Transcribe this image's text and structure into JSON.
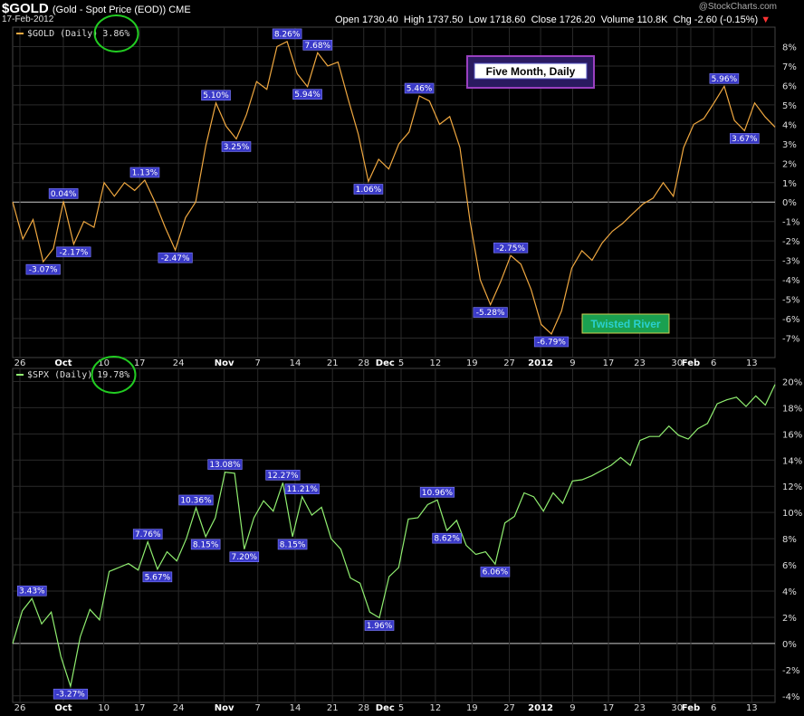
{
  "header": {
    "symbol": "$GOLD",
    "description": "(Gold - Spot Price (EOD)) CME",
    "date": "17-Feb-2012",
    "watermark": "@StockCharts.com",
    "open_label": "Open",
    "open": "1730.40",
    "high_label": "High",
    "high": "1737.50",
    "low_label": "Low",
    "low": "1718.60",
    "close_label": "Close",
    "close": "1726.20",
    "volume_label": "Volume",
    "volume": "110.8K",
    "chg_label": "Chg",
    "chg": "-2.60 (-0.15%)",
    "chg_icon": "down-triangle-icon"
  },
  "annotations": {
    "title_box": "Five Month, Daily",
    "credit_box": "Twisted River"
  },
  "colors": {
    "gold_line": "#f0a840",
    "spx_line": "#90ee70",
    "label_bg": "#3a3ac8",
    "label_border": "#8080ff",
    "circle": "#22cc22",
    "grid": "#2a2a2a",
    "zero": "#cccccc"
  },
  "chart_data": [
    {
      "type": "line",
      "legend": "$GOLD (Daily)",
      "last_value": "3.86%",
      "ylim": [
        -8,
        9
      ],
      "yticks": [
        "8%",
        "7%",
        "6%",
        "5%",
        "4%",
        "3%",
        "2%",
        "1%",
        "0%",
        "-1%",
        "-2%",
        "-3%",
        "-4%",
        "-5%",
        "-6%",
        "-7%"
      ],
      "y": [
        0.0,
        -1.9,
        -0.9,
        -3.07,
        -2.4,
        0.04,
        -2.17,
        -1.0,
        -1.3,
        1.0,
        0.3,
        1.0,
        0.6,
        1.13,
        0.0,
        -1.3,
        -2.47,
        -0.8,
        0.0,
        2.9,
        5.1,
        3.9,
        3.25,
        4.5,
        6.2,
        5.8,
        8.0,
        8.26,
        6.6,
        5.94,
        7.68,
        7.0,
        7.2,
        5.3,
        3.5,
        1.06,
        2.2,
        1.7,
        3.0,
        3.6,
        5.46,
        5.2,
        4.0,
        4.4,
        2.8,
        -1.0,
        -4.0,
        -5.28,
        -4.1,
        -2.75,
        -3.2,
        -4.5,
        -6.3,
        -6.79,
        -5.6,
        -3.4,
        -2.5,
        -3.0,
        -2.1,
        -1.5,
        -1.1,
        -0.6,
        -0.1,
        0.2,
        1.0,
        0.3,
        2.8,
        4.0,
        4.3,
        5.1,
        5.96,
        4.2,
        3.67,
        5.1,
        4.4,
        3.86
      ],
      "point_labels": [
        {
          "i": 3,
          "text": "-3.07%",
          "pos": "below"
        },
        {
          "i": 5,
          "text": "0.04%",
          "pos": "above"
        },
        {
          "i": 6,
          "text": "-2.17%",
          "pos": "below"
        },
        {
          "i": 13,
          "text": "1.13%",
          "pos": "above"
        },
        {
          "i": 16,
          "text": "-2.47%",
          "pos": "below"
        },
        {
          "i": 20,
          "text": "5.10%",
          "pos": "above"
        },
        {
          "i": 22,
          "text": "3.25%",
          "pos": "below"
        },
        {
          "i": 27,
          "text": "8.26%",
          "pos": "above"
        },
        {
          "i": 29,
          "text": "5.94%",
          "pos": "below"
        },
        {
          "i": 30,
          "text": "7.68%",
          "pos": "above"
        },
        {
          "i": 35,
          "text": "1.06%",
          "pos": "below"
        },
        {
          "i": 40,
          "text": "5.46%",
          "pos": "above"
        },
        {
          "i": 47,
          "text": "-5.28%",
          "pos": "below"
        },
        {
          "i": 49,
          "text": "-2.75%",
          "pos": "above"
        },
        {
          "i": 53,
          "text": "-6.79%",
          "pos": "below"
        },
        {
          "i": 70,
          "text": "5.96%",
          "pos": "above"
        },
        {
          "i": 72,
          "text": "3.67%",
          "pos": "below"
        }
      ]
    },
    {
      "type": "line",
      "legend": "$SPX (Daily)",
      "last_value": "19.78%",
      "ylim": [
        -4.5,
        21
      ],
      "yticks": [
        "20%",
        "18%",
        "16%",
        "14%",
        "12%",
        "10%",
        "8%",
        "6%",
        "4%",
        "2%",
        "0%",
        "-2%",
        "-4%"
      ],
      "y": [
        0.0,
        2.5,
        3.43,
        1.5,
        2.4,
        -1.0,
        -3.27,
        0.5,
        2.6,
        1.8,
        5.5,
        5.8,
        6.1,
        5.6,
        7.76,
        5.67,
        7.0,
        6.3,
        8.0,
        10.36,
        8.15,
        9.6,
        13.08,
        13.0,
        7.2,
        9.6,
        10.9,
        10.1,
        12.27,
        8.15,
        11.21,
        9.8,
        10.4,
        8.0,
        7.2,
        5.0,
        4.6,
        2.4,
        1.96,
        5.1,
        5.8,
        9.5,
        9.6,
        10.6,
        10.96,
        8.62,
        9.4,
        7.5,
        6.8,
        7.0,
        6.06,
        9.2,
        9.7,
        11.5,
        11.2,
        10.1,
        11.5,
        10.7,
        12.4,
        12.5,
        12.8,
        13.2,
        13.6,
        14.2,
        13.6,
        15.5,
        15.8,
        15.8,
        16.6,
        15.9,
        15.6,
        16.4,
        16.8,
        18.3,
        18.6,
        18.8,
        18.1,
        18.9,
        18.2,
        19.78
      ],
      "point_labels": [
        {
          "i": 2,
          "text": "3.43%",
          "pos": "above"
        },
        {
          "i": 6,
          "text": "-3.27%",
          "pos": "below"
        },
        {
          "i": 14,
          "text": "7.76%",
          "pos": "above"
        },
        {
          "i": 15,
          "text": "5.67%",
          "pos": "below"
        },
        {
          "i": 19,
          "text": "10.36%",
          "pos": "above"
        },
        {
          "i": 20,
          "text": "8.15%",
          "pos": "below"
        },
        {
          "i": 22,
          "text": "13.08%",
          "pos": "above"
        },
        {
          "i": 24,
          "text": "7.20%",
          "pos": "below"
        },
        {
          "i": 28,
          "text": "12.27%",
          "pos": "above"
        },
        {
          "i": 29,
          "text": "8.15%",
          "pos": "below"
        },
        {
          "i": 30,
          "text": "11.21%",
          "pos": "above"
        },
        {
          "i": 38,
          "text": "1.96%",
          "pos": "below"
        },
        {
          "i": 44,
          "text": "10.96%",
          "pos": "above"
        },
        {
          "i": 45,
          "text": "8.62%",
          "pos": "below"
        },
        {
          "i": 50,
          "text": "6.06%",
          "pos": "below"
        }
      ]
    }
  ],
  "x_ticks": [
    {
      "label": "26",
      "frac": 0.0,
      "bold": false
    },
    {
      "label": "Oct",
      "frac": 0.057,
      "bold": true
    },
    {
      "label": "10",
      "frac": 0.11,
      "bold": false
    },
    {
      "label": "17",
      "frac": 0.157,
      "bold": false
    },
    {
      "label": "24",
      "frac": 0.208,
      "bold": false
    },
    {
      "label": "Nov",
      "frac": 0.268,
      "bold": true
    },
    {
      "label": "7",
      "frac": 0.312,
      "bold": false
    },
    {
      "label": "14",
      "frac": 0.361,
      "bold": false
    },
    {
      "label": "21",
      "frac": 0.41,
      "bold": false
    },
    {
      "label": "28",
      "frac": 0.451,
      "bold": false
    },
    {
      "label": "Dec",
      "frac": 0.479,
      "bold": true
    },
    {
      "label": "5",
      "frac": 0.5,
      "bold": false
    },
    {
      "label": "12",
      "frac": 0.545,
      "bold": false
    },
    {
      "label": "19",
      "frac": 0.593,
      "bold": false
    },
    {
      "label": "27",
      "frac": 0.642,
      "bold": false
    },
    {
      "label": "2012",
      "frac": 0.683,
      "bold": true
    },
    {
      "label": "9",
      "frac": 0.725,
      "bold": false
    },
    {
      "label": "17",
      "frac": 0.772,
      "bold": false
    },
    {
      "label": "23",
      "frac": 0.813,
      "bold": false
    },
    {
      "label": "30",
      "frac": 0.862,
      "bold": false
    },
    {
      "label": "Feb",
      "frac": 0.88,
      "bold": true
    },
    {
      "label": "6",
      "frac": 0.91,
      "bold": false
    },
    {
      "label": "13",
      "frac": 0.96,
      "bold": false
    }
  ]
}
